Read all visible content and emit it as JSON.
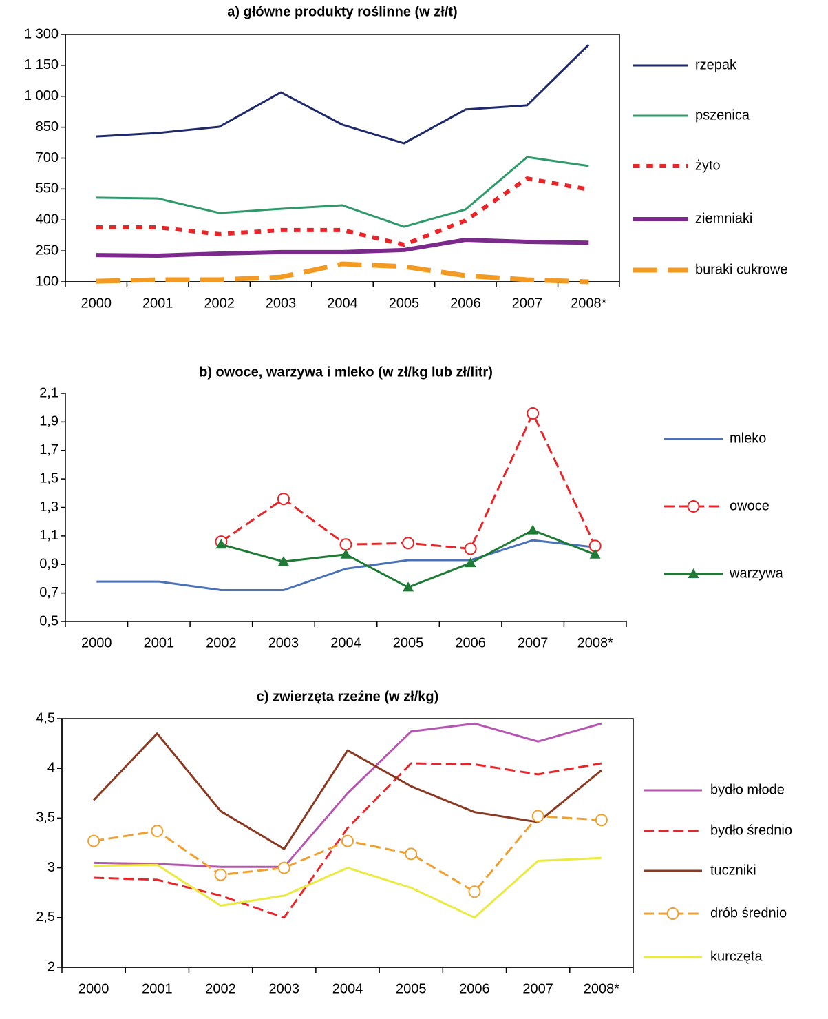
{
  "chart_data": [
    {
      "type": "line",
      "title": "a) główne produkty roślinne (w zł/t)",
      "categories": [
        "2000",
        "2001",
        "2002",
        "2003",
        "2004",
        "2005",
        "2006",
        "2007",
        "2008*"
      ],
      "ylim": [
        100,
        1300
      ],
      "yticks": [
        100,
        250,
        400,
        550,
        700,
        850,
        {
          "value": 1000,
          "label": "1 000"
        },
        {
          "value": 1150,
          "label": "1 150"
        },
        {
          "value": 1300,
          "label": "1 300"
        }
      ],
      "frame": true,
      "series": [
        {
          "name": "rzepak",
          "color": "#1f2a6b",
          "style": "solid",
          "width": 3,
          "values": [
            805,
            822,
            852,
            1019,
            862,
            772,
            936,
            956,
            1250
          ]
        },
        {
          "name": "pszenica",
          "color": "#2e9a6a",
          "style": "solid",
          "width": 3,
          "values": [
            508,
            504,
            434,
            454,
            471,
            367,
            451,
            705,
            662
          ]
        },
        {
          "name": "żyto",
          "color": "#e8262a",
          "style": "dotted",
          "width": 6,
          "values": [
            364,
            364,
            331,
            351,
            351,
            280,
            397,
            601,
            548
          ]
        },
        {
          "name": "ziemniaki",
          "color": "#7b2a8c",
          "style": "solid",
          "width": 6,
          "values": [
            230,
            227,
            237,
            244,
            244,
            254,
            304,
            294,
            290
          ]
        },
        {
          "name": "buraki cukrowe",
          "color": "#f39a22",
          "style": "dashed",
          "width": 7,
          "values": [
            103,
            110,
            110,
            123,
            187,
            174,
            130,
            110,
            100
          ]
        }
      ]
    },
    {
      "type": "line",
      "title": "b) owoce, warzywa i  mleko (w zł/kg lub zł/litr)",
      "categories": [
        "2000",
        "2001",
        "2002",
        "2003",
        "2004",
        "2005",
        "2006",
        "2007",
        "2008*"
      ],
      "ylim": [
        0.5,
        2.1
      ],
      "yticks": [
        {
          "value": 0.5,
          "label": "0,5"
        },
        {
          "value": 0.7,
          "label": "0,7"
        },
        {
          "value": 0.9,
          "label": "0,9"
        },
        {
          "value": 1.1,
          "label": "1,1"
        },
        {
          "value": 1.3,
          "label": "1,3"
        },
        {
          "value": 1.5,
          "label": "1,5"
        },
        {
          "value": 1.7,
          "label": "1,7"
        },
        {
          "value": 1.9,
          "label": "1,9"
        },
        {
          "value": 2.1,
          "label": "2,1"
        }
      ],
      "frame": false,
      "series": [
        {
          "name": "mleko",
          "color": "#4a72b8",
          "style": "solid",
          "width": 3,
          "values": [
            0.78,
            0.78,
            0.72,
            0.72,
            0.87,
            0.93,
            0.93,
            1.07,
            1.02
          ]
        },
        {
          "name": "owoce",
          "color": "#e8262a",
          "style": "dashed",
          "width": 3,
          "marker": "circle",
          "values": [
            null,
            null,
            1.06,
            1.36,
            1.04,
            1.05,
            1.01,
            1.96,
            1.03
          ]
        },
        {
          "name": "warzywa",
          "color": "#1e7b35",
          "style": "solid",
          "width": 3,
          "marker": "triangle",
          "values": [
            null,
            null,
            1.04,
            0.92,
            0.97,
            0.74,
            0.91,
            1.14,
            0.97
          ]
        }
      ]
    },
    {
      "type": "line",
      "title": "c) zwierzęta rzeźne (w zł/kg)",
      "categories": [
        "2000",
        "2001",
        "2002",
        "2003",
        "2004",
        "2005",
        "2006",
        "2007",
        "2008*"
      ],
      "ylim": [
        2,
        4.5
      ],
      "yticks": [
        2,
        {
          "value": 2.5,
          "label": "2,5"
        },
        3,
        {
          "value": 3.5,
          "label": "3,5"
        },
        4,
        {
          "value": 4.5,
          "label": "4,5"
        }
      ],
      "frame": true,
      "series": [
        {
          "name": "bydło młode",
          "color": "#b556b0",
          "style": "solid",
          "width": 3,
          "values": [
            3.05,
            3.04,
            3.01,
            3.01,
            3.75,
            4.37,
            4.45,
            4.27,
            4.45
          ]
        },
        {
          "name": "bydło średnio",
          "color": "#e8262a",
          "style": "dashed",
          "width": 3,
          "values": [
            2.9,
            2.88,
            2.72,
            2.5,
            3.4,
            4.05,
            4.04,
            3.94,
            4.05
          ]
        },
        {
          "name": "tuczniki",
          "color": "#8b3a22",
          "style": "solid",
          "width": 3,
          "values": [
            3.68,
            4.35,
            3.57,
            3.19,
            4.18,
            3.82,
            3.56,
            3.46,
            3.98
          ]
        },
        {
          "name": "drób średnio",
          "color": "#f0a030",
          "style": "dashed",
          "width": 3,
          "marker": "circle",
          "values": [
            3.27,
            3.37,
            2.93,
            3.0,
            3.27,
            3.14,
            2.76,
            3.52,
            3.48
          ]
        },
        {
          "name": "kurczęta",
          "color": "#eaea40",
          "style": "solid",
          "width": 3,
          "values": [
            3.02,
            3.03,
            2.62,
            2.72,
            3.0,
            2.8,
            2.5,
            3.07,
            3.1
          ]
        }
      ]
    }
  ]
}
